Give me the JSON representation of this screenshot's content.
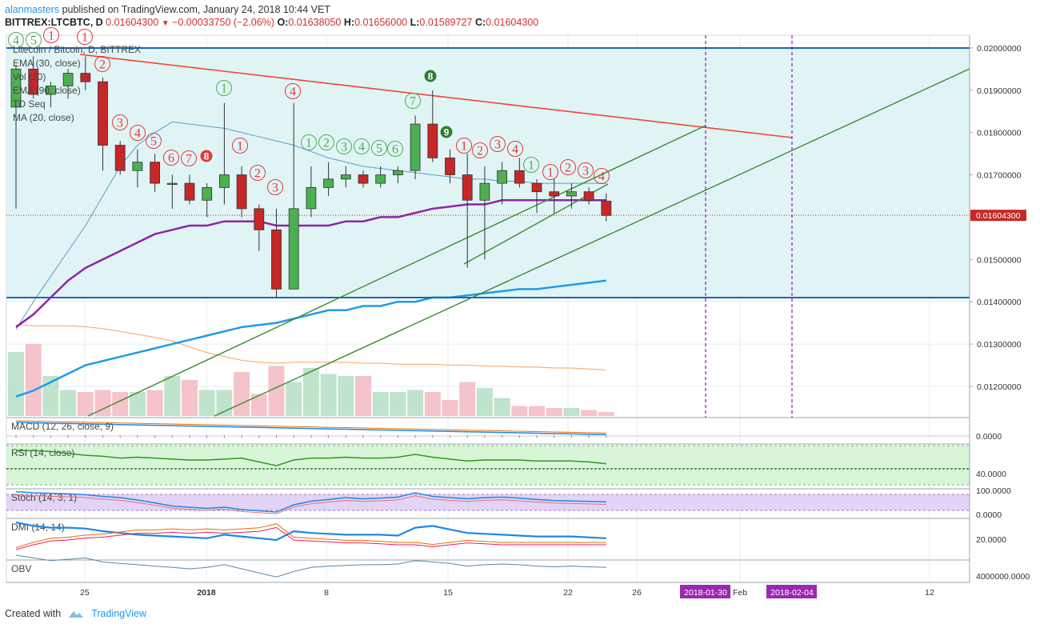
{
  "header": {
    "author": "alanmasters",
    "publish_text": "published on TradingView.com, January 24, 2018 10:44 VET"
  },
  "ohlc": {
    "symbol": "BITTREX:LTCBTC, D",
    "last": "0.01604300",
    "change": "−0.00033750 (−2.06%)",
    "o_label": "O:",
    "o": "0.01638050",
    "h_label": "H:",
    "h": "0.01656000",
    "l_label": "L:",
    "l": "0.01589727",
    "c_label": "C:",
    "c": "0.01604300"
  },
  "footer": {
    "created_with": "Created with",
    "brand": "TradingView"
  },
  "colors": {
    "up": "#4caf50",
    "down": "#c62828",
    "channel": "#e0f4f6",
    "rsi_bg": "#d8f5d8",
    "stoch_bg": "#e3d3f6",
    "ema30": "#5a9fc4",
    "ema90": "#8e24aa",
    "ma20": "#1e88e5",
    "trend_red": "#f44336",
    "trend_green": "#3d8b2f"
  },
  "chart_data": {
    "type": "candlestick",
    "title": "Litecoin / Bitcoin, D, BITTREX",
    "legend": [
      "Litecoin / Bitcoin, D, BITTREX",
      "EMA (30, close)",
      "Vol (20)",
      "EMA (90, close)",
      "TD Seq",
      "MA (20, close)"
    ],
    "price_axis": {
      "ticks": [
        "0.02000000",
        "0.01900000",
        "0.01800000",
        "0.01700000",
        "0.01600000",
        "0.01500000",
        "0.01400000",
        "0.01300000",
        "0.01200000"
      ],
      "ylim": [
        0.0113,
        0.0203
      ]
    },
    "last_price_label": "0.01604300",
    "x_ticks": [
      "25",
      "2018",
      "8",
      "15",
      "22",
      "26",
      "Feb",
      "12"
    ],
    "date_markers": [
      "2018-01-30",
      "2018-02-04"
    ],
    "candles": [
      {
        "o": 0.0186,
        "h": 0.0196,
        "l": 0.0162,
        "c": 0.0195
      },
      {
        "o": 0.0195,
        "h": 0.0198,
        "l": 0.0188,
        "c": 0.0189
      },
      {
        "o": 0.0189,
        "h": 0.0192,
        "l": 0.0186,
        "c": 0.0191
      },
      {
        "o": 0.0191,
        "h": 0.0195,
        "l": 0.0188,
        "c": 0.0194
      },
      {
        "o": 0.0194,
        "h": 0.0198,
        "l": 0.019,
        "c": 0.0192
      },
      {
        "o": 0.0192,
        "h": 0.0193,
        "l": 0.0171,
        "c": 0.0177
      },
      {
        "o": 0.0177,
        "h": 0.0178,
        "l": 0.017,
        "c": 0.0171
      },
      {
        "o": 0.0171,
        "h": 0.0176,
        "l": 0.0167,
        "c": 0.0173
      },
      {
        "o": 0.0173,
        "h": 0.0175,
        "l": 0.0166,
        "c": 0.0168
      },
      {
        "o": 0.0168,
        "h": 0.017,
        "l": 0.0162,
        "c": 0.0168
      },
      {
        "o": 0.0168,
        "h": 0.017,
        "l": 0.0163,
        "c": 0.0164
      },
      {
        "o": 0.0164,
        "h": 0.0168,
        "l": 0.016,
        "c": 0.0167
      },
      {
        "o": 0.0167,
        "h": 0.0187,
        "l": 0.0163,
        "c": 0.017
      },
      {
        "o": 0.017,
        "h": 0.0172,
        "l": 0.016,
        "c": 0.0162
      },
      {
        "o": 0.0162,
        "h": 0.0163,
        "l": 0.0152,
        "c": 0.0157
      },
      {
        "o": 0.0157,
        "h": 0.0162,
        "l": 0.0141,
        "c": 0.0143
      },
      {
        "o": 0.0143,
        "h": 0.0187,
        "l": 0.0143,
        "c": 0.0162
      },
      {
        "o": 0.0162,
        "h": 0.0172,
        "l": 0.016,
        "c": 0.0167
      },
      {
        "o": 0.0167,
        "h": 0.0173,
        "l": 0.0165,
        "c": 0.0169
      },
      {
        "o": 0.0169,
        "h": 0.0172,
        "l": 0.0167,
        "c": 0.017
      },
      {
        "o": 0.017,
        "h": 0.0171,
        "l": 0.0167,
        "c": 0.0168
      },
      {
        "o": 0.0168,
        "h": 0.0172,
        "l": 0.0167,
        "c": 0.017
      },
      {
        "o": 0.017,
        "h": 0.0172,
        "l": 0.0168,
        "c": 0.0171
      },
      {
        "o": 0.0171,
        "h": 0.0184,
        "l": 0.0169,
        "c": 0.0182
      },
      {
        "o": 0.0182,
        "h": 0.019,
        "l": 0.0173,
        "c": 0.0174
      },
      {
        "o": 0.0174,
        "h": 0.0176,
        "l": 0.0168,
        "c": 0.017
      },
      {
        "o": 0.017,
        "h": 0.0175,
        "l": 0.0148,
        "c": 0.0164
      },
      {
        "o": 0.0164,
        "h": 0.0172,
        "l": 0.015,
        "c": 0.0168
      },
      {
        "o": 0.0168,
        "h": 0.0173,
        "l": 0.0163,
        "c": 0.0171
      },
      {
        "o": 0.0171,
        "h": 0.0174,
        "l": 0.0167,
        "c": 0.0168
      },
      {
        "o": 0.0168,
        "h": 0.0169,
        "l": 0.0161,
        "c": 0.0166
      },
      {
        "o": 0.0166,
        "h": 0.0169,
        "l": 0.0161,
        "c": 0.0165
      },
      {
        "o": 0.0165,
        "h": 0.0168,
        "l": 0.0162,
        "c": 0.0166
      },
      {
        "o": 0.0166,
        "h": 0.0167,
        "l": 0.0163,
        "c": 0.0164
      },
      {
        "o": 0.01638,
        "h": 0.01656,
        "l": 0.0159,
        "c": 0.01604
      }
    ],
    "volume": [
      32,
      36,
      20,
      13,
      12,
      13,
      12,
      12,
      13,
      20,
      18,
      13,
      13,
      22,
      11,
      25,
      17,
      24,
      21,
      20,
      20,
      12,
      12,
      13,
      12,
      8,
      17,
      14,
      9,
      5,
      5,
      4,
      4,
      3,
      2
    ],
    "td_seq": {
      "buy_labels": [
        "1",
        "2",
        "3",
        "4",
        "1",
        "2",
        "3",
        "4",
        "1",
        "2",
        "3",
        "4",
        "5",
        "6",
        "7",
        "8",
        "1",
        "2",
        "3",
        "4",
        "5",
        "6",
        "7",
        "8",
        "1",
        "2",
        "3",
        "4",
        "9"
      ],
      "sell_labels": [
        "4",
        "5",
        "1",
        "1",
        "2",
        "1",
        "3",
        "4",
        "5",
        "1",
        "2",
        "3",
        "4",
        "5",
        "6",
        "7",
        "1",
        "1",
        "2",
        "3",
        "4",
        "5",
        "6",
        "7",
        "8",
        "9"
      ]
    },
    "panes": [
      {
        "name": "MACD (12, 26, close, 9)",
        "ticks": [
          "0.0000"
        ]
      },
      {
        "name": "RSI (14, close)",
        "ticks": [
          "40.0000"
        ]
      },
      {
        "name": "Stoch (14, 3, 1)",
        "ticks": [
          "100.0000",
          "0.0000"
        ]
      },
      {
        "name": "DMI (14, 14)",
        "ticks": [
          "20.0000"
        ]
      },
      {
        "name": "OBV",
        "ticks": [
          "4000000.0000"
        ]
      }
    ],
    "rsi": [
      68,
      68,
      67,
      65,
      63,
      62,
      60,
      61,
      60,
      59,
      58,
      58,
      59,
      60,
      56,
      52,
      58,
      60,
      60,
      61,
      60,
      60,
      61,
      64,
      61,
      59,
      57,
      58,
      58,
      58,
      57,
      57,
      57,
      56,
      54
    ],
    "stoch": [
      95,
      90,
      88,
      86,
      82,
      75,
      70,
      60,
      48,
      35,
      30,
      25,
      30,
      20,
      15,
      10,
      40,
      55,
      62,
      70,
      65,
      68,
      72,
      90,
      75,
      70,
      65,
      70,
      72,
      68,
      62,
      58,
      56,
      54,
      52
    ],
    "dmi_plus": [
      40,
      36,
      34,
      34,
      33,
      30,
      28,
      26,
      25,
      24,
      23,
      22,
      26,
      24,
      22,
      20,
      30,
      28,
      27,
      26,
      26,
      26,
      25,
      34,
      36,
      32,
      28,
      27,
      26,
      25,
      24,
      24,
      24,
      23,
      22
    ],
    "dmi_minus": [
      15,
      20,
      24,
      25,
      27,
      28,
      30,
      32,
      32,
      33,
      32,
      33,
      32,
      33,
      34,
      38,
      25,
      24,
      23,
      22,
      22,
      21,
      20,
      20,
      18,
      20,
      22,
      21,
      20,
      20,
      20,
      20,
      20,
      20,
      20
    ],
    "obv": [
      100,
      96,
      92,
      94,
      96,
      90,
      88,
      86,
      84,
      82,
      80,
      82,
      86,
      80,
      74,
      68,
      76,
      82,
      84,
      85,
      86,
      86,
      87,
      92,
      90,
      88,
      84,
      86,
      87,
      86,
      84,
      83,
      84,
      83,
      82
    ]
  }
}
